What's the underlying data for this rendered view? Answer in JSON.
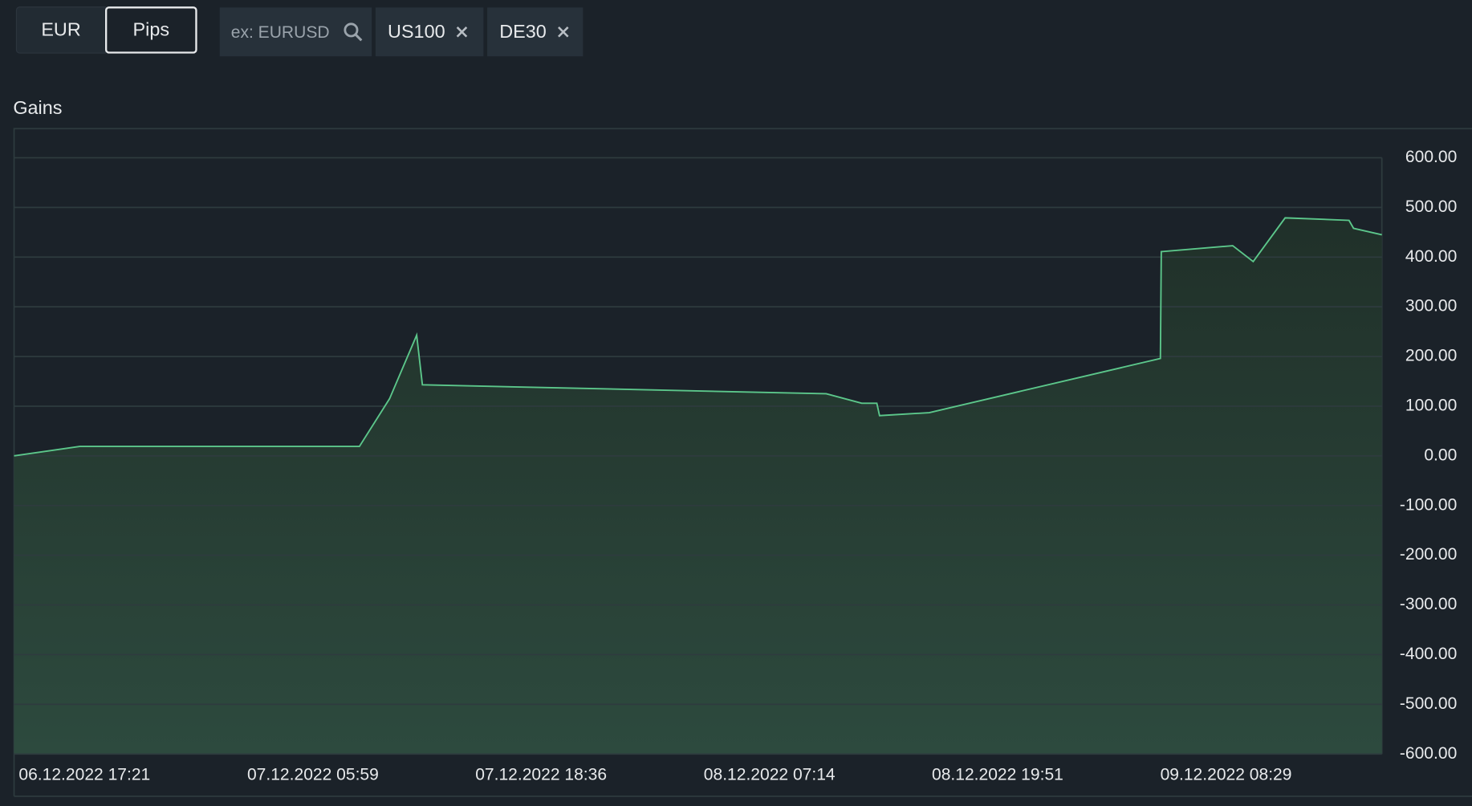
{
  "toolbar": {
    "toggle": [
      "EUR",
      "Pips"
    ],
    "search_placeholder": "ex: EURUSD",
    "tags": [
      "US100",
      "DE30"
    ]
  },
  "chart_data": {
    "type": "area",
    "title": "Gains",
    "color": "#5cc78b",
    "grid": true,
    "x": [
      "2022-12-06T17:21",
      "2022-12-06T20:59",
      "2022-12-07T12:27",
      "2022-12-07T14:07",
      "2022-12-07T15:37",
      "2022-12-07T15:56",
      "2022-12-08T14:16",
      "2022-12-08T16:14",
      "2022-12-08T17:04",
      "2022-12-08T17:13",
      "2022-12-08T19:58",
      "2022-12-09T08:45",
      "2022-12-09T08:48",
      "2022-12-09T12:45",
      "2022-12-09T13:53",
      "2022-12-09T15:39",
      "2022-12-09T19:11",
      "2022-12-09T19:26",
      "2022-12-09T21:00"
    ],
    "values": [
      0,
      19,
      19,
      115,
      243,
      143,
      125,
      106,
      106,
      81,
      87,
      196,
      411,
      423,
      391,
      479,
      474,
      458,
      445
    ],
    "xlim": [
      "2022-12-06T17:21",
      "2022-12-09T21:00"
    ],
    "xticks": [
      {
        "value": "2022-12-06T17:21",
        "label": "06.12.2022 17:21"
      },
      {
        "value": "2022-12-07T05:59",
        "label": "07.12.2022 05:59"
      },
      {
        "value": "2022-12-07T18:36",
        "label": "07.12.2022 18:36"
      },
      {
        "value": "2022-12-08T07:14",
        "label": "08.12.2022 07:14"
      },
      {
        "value": "2022-12-08T19:51",
        "label": "08.12.2022 19:51"
      },
      {
        "value": "2022-12-09T08:29",
        "label": "09.12.2022 08:29"
      }
    ],
    "ylim": [
      -600,
      600
    ],
    "yticks": [
      {
        "value": 600,
        "label": "600.00"
      },
      {
        "value": 500,
        "label": "500.00"
      },
      {
        "value": 400,
        "label": "400.00"
      },
      {
        "value": 300,
        "label": "300.00"
      },
      {
        "value": 200,
        "label": "200.00"
      },
      {
        "value": 100,
        "label": "100.00"
      },
      {
        "value": 0,
        "label": "0.00"
      },
      {
        "value": -100,
        "label": "-100.00"
      },
      {
        "value": -200,
        "label": "-200.00"
      },
      {
        "value": -300,
        "label": "-300.00"
      },
      {
        "value": -400,
        "label": "-400.00"
      },
      {
        "value": -500,
        "label": "-500.00"
      },
      {
        "value": -600,
        "label": "-600.00"
      }
    ]
  }
}
